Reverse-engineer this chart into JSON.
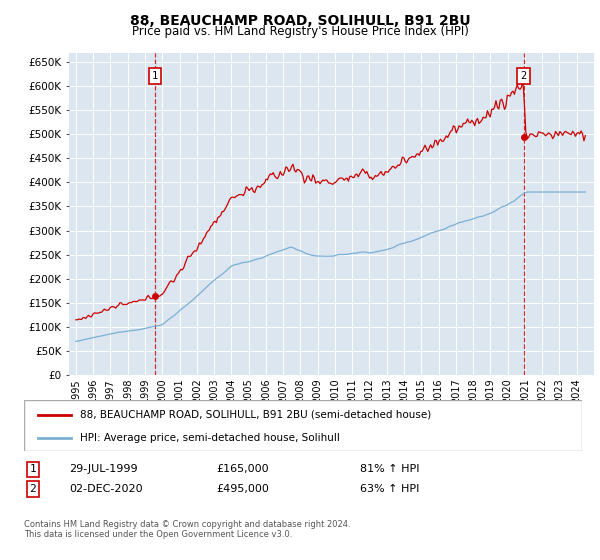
{
  "title": "88, BEAUCHAMP ROAD, SOLIHULL, B91 2BU",
  "subtitle": "Price paid vs. HM Land Registry's House Price Index (HPI)",
  "ytick_values": [
    0,
    50000,
    100000,
    150000,
    200000,
    250000,
    300000,
    350000,
    400000,
    450000,
    500000,
    550000,
    600000,
    650000
  ],
  "x_start_year": 1995,
  "x_end_year": 2025,
  "sale1_date": 1999.57,
  "sale1_price": 165000,
  "sale2_date": 2020.92,
  "sale2_price": 495000,
  "line_color_property": "#cc0000",
  "line_color_hpi": "#7bafd4",
  "background_color": "#dce6f0",
  "grid_color": "#ffffff",
  "legend_label_property": "88, BEAUCHAMP ROAD, SOLIHULL, B91 2BU (semi-detached house)",
  "legend_label_hpi": "HPI: Average price, semi-detached house, Solihull",
  "annotation1_date": "29-JUL-1999",
  "annotation1_price": "£165,000",
  "annotation1_hpi": "81% ↑ HPI",
  "annotation2_date": "02-DEC-2020",
  "annotation2_price": "£495,000",
  "annotation2_hpi": "63% ↑ HPI",
  "footer": "Contains HM Land Registry data © Crown copyright and database right 2024.\nThis data is licensed under the Open Government Licence v3.0."
}
